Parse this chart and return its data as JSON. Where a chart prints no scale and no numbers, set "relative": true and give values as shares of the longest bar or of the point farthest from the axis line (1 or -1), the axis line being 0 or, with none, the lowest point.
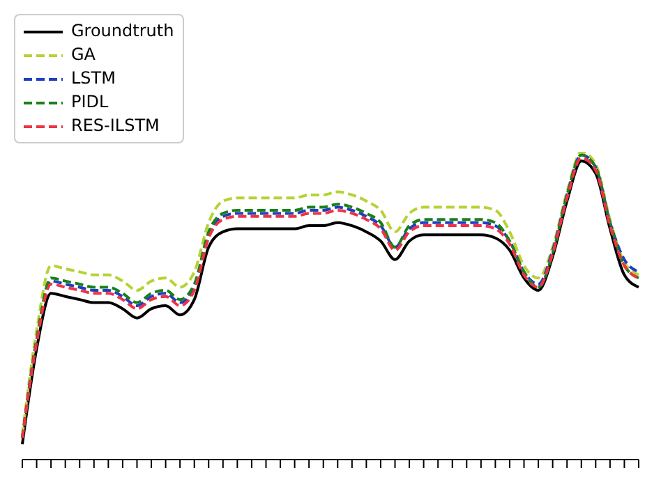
{
  "chart_data": {
    "type": "line",
    "relative": true,
    "legend": "top left",
    "grid": false,
    "marker": "none",
    "categories": [
      null,
      null,
      null,
      null,
      null,
      null,
      null,
      null,
      null,
      null,
      null,
      null,
      null,
      null,
      null,
      null,
      null,
      null,
      null,
      null,
      null,
      null,
      null,
      null,
      null,
      null,
      null,
      null,
      null,
      null,
      null,
      null,
      null,
      null,
      null,
      null,
      null,
      null,
      null,
      null,
      null,
      null,
      null,
      null
    ],
    "series": [
      {
        "name": "Groundtruth",
        "color": "#000000",
        "line_style": "solid",
        "values": [
          0.05,
          0.36,
          0.54,
          0.53,
          0.52,
          0.51,
          0.51,
          0.49,
          0.46,
          0.49,
          0.5,
          0.47,
          0.52,
          0.69,
          0.74,
          0.75,
          0.75,
          0.75,
          0.75,
          0.75,
          0.76,
          0.76,
          0.77,
          0.76,
          0.74,
          0.71,
          0.65,
          0.71,
          0.73,
          0.73,
          0.73,
          0.73,
          0.73,
          0.72,
          0.68,
          0.59,
          0.55,
          0.66,
          0.84,
          0.97,
          0.93,
          0.75,
          0.6,
          0.56
        ]
      },
      {
        "name": "GA",
        "color": "#b5d334",
        "line_style": "dashed",
        "values": [
          0.08,
          0.42,
          0.63,
          0.62,
          0.61,
          0.6,
          0.6,
          0.58,
          0.55,
          0.58,
          0.59,
          0.56,
          0.61,
          0.77,
          0.84,
          0.85,
          0.85,
          0.85,
          0.85,
          0.85,
          0.86,
          0.86,
          0.87,
          0.86,
          0.84,
          0.81,
          0.74,
          0.8,
          0.82,
          0.82,
          0.82,
          0.82,
          0.82,
          0.81,
          0.74,
          0.63,
          0.59,
          0.69,
          0.87,
          1.0,
          0.96,
          0.78,
          0.64,
          0.6
        ]
      },
      {
        "name": "LSTM",
        "color": "#1f3fbf",
        "line_style": "dashed",
        "values": [
          0.07,
          0.39,
          0.58,
          0.57,
          0.56,
          0.55,
          0.55,
          0.53,
          0.5,
          0.53,
          0.54,
          0.51,
          0.56,
          0.73,
          0.79,
          0.8,
          0.8,
          0.8,
          0.8,
          0.8,
          0.81,
          0.81,
          0.82,
          0.81,
          0.79,
          0.76,
          0.69,
          0.75,
          0.77,
          0.77,
          0.77,
          0.77,
          0.77,
          0.76,
          0.71,
          0.61,
          0.57,
          0.68,
          0.86,
          0.99,
          0.95,
          0.77,
          0.65,
          0.61
        ]
      },
      {
        "name": "PIDL",
        "color": "#1a7f1a",
        "line_style": "dashed",
        "values": [
          0.07,
          0.39,
          0.59,
          0.58,
          0.57,
          0.56,
          0.56,
          0.54,
          0.51,
          0.54,
          0.55,
          0.52,
          0.57,
          0.74,
          0.8,
          0.81,
          0.81,
          0.81,
          0.81,
          0.81,
          0.82,
          0.82,
          0.83,
          0.82,
          0.8,
          0.77,
          0.69,
          0.76,
          0.78,
          0.78,
          0.78,
          0.78,
          0.78,
          0.77,
          0.71,
          0.61,
          0.56,
          0.67,
          0.86,
          0.99,
          0.95,
          0.77,
          0.63,
          0.59
        ]
      },
      {
        "name": "RES-ILSTM",
        "color": "#ee3344",
        "line_style": "dashed",
        "values": [
          0.07,
          0.38,
          0.57,
          0.56,
          0.55,
          0.54,
          0.54,
          0.52,
          0.49,
          0.52,
          0.53,
          0.5,
          0.55,
          0.72,
          0.78,
          0.79,
          0.79,
          0.79,
          0.79,
          0.79,
          0.8,
          0.8,
          0.81,
          0.8,
          0.78,
          0.75,
          0.68,
          0.74,
          0.76,
          0.76,
          0.76,
          0.76,
          0.76,
          0.75,
          0.7,
          0.6,
          0.56,
          0.67,
          0.85,
          0.98,
          0.94,
          0.76,
          0.63,
          0.59
        ]
      }
    ]
  }
}
